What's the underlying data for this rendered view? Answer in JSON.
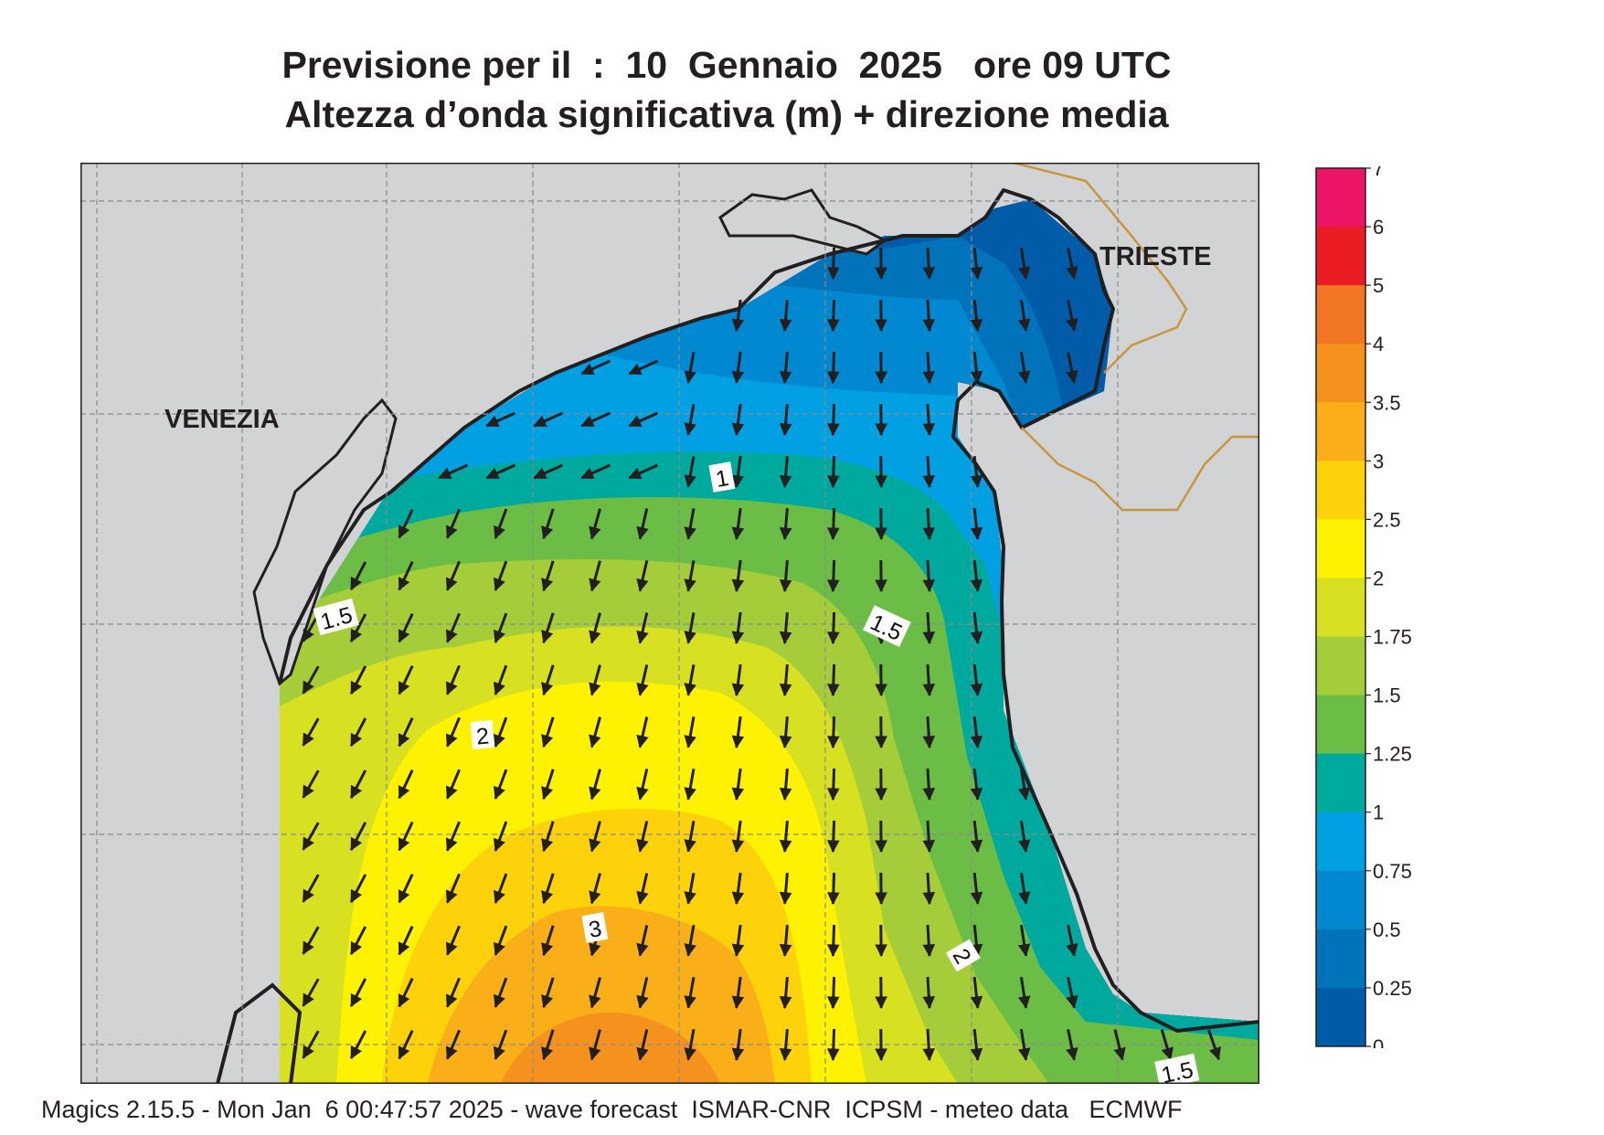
{
  "title": {
    "line1": "Previsione per il  :  10  Gennaio  2025   ore 09 UTC",
    "line2": "Altezza d’onda significativa (m) + direzione media"
  },
  "places": [
    {
      "id": "venezia",
      "label": "VENEZIA"
    },
    {
      "id": "trieste",
      "label": "TRIESTE"
    }
  ],
  "contour_labels": [
    "1",
    "1.5",
    "1.5",
    "2",
    "3",
    "2",
    "1.5"
  ],
  "legend": {
    "ticks": [
      "7",
      "6",
      "5",
      "4",
      "3.5",
      "3",
      "2.5",
      "2",
      "1.75",
      "1.5",
      "1.25",
      "1",
      "0.75",
      "0.5",
      "0.25",
      "0"
    ],
    "colors": [
      "#ec1466",
      "#ec1c24",
      "#f27623",
      "#f5921e",
      "#faaf19",
      "#fdd20a",
      "#fff200",
      "#d7e021",
      "#a5cd39",
      "#6bbd45",
      "#00a99d",
      "#00a0e3",
      "#0089d0",
      "#0073bb",
      "#005ba9"
    ]
  },
  "colors": {
    "land": "#d1d3d4",
    "coast": "#231f20",
    "border": "#c8963c",
    "arrow": "#231f20"
  },
  "footer": "Magics 2.15.5 - Mon Jan  6 00:47:57 2025 - wave forecast  ISMAR-CNR  ICPSM - meteo data   ECMWF"
}
